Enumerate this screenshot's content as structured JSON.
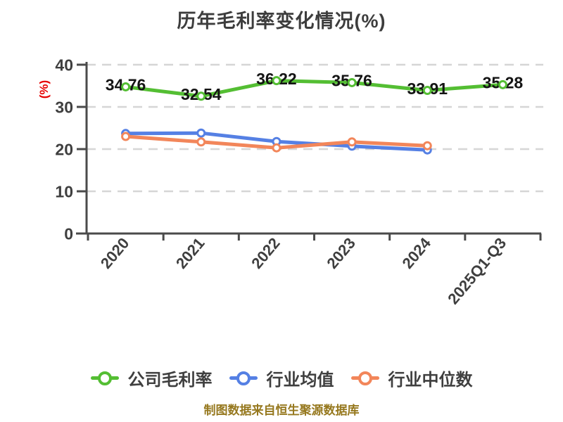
{
  "title": "历年毛利率变化情况(%)",
  "footer": "制图数据来自恒生聚源数据库",
  "legend": {
    "items": [
      {
        "key": "company-gross-margin",
        "label": "公司毛利率",
        "color": "#54BE33"
      },
      {
        "key": "industry-average",
        "label": "行业均值",
        "color": "#5580E4"
      },
      {
        "key": "industry-median",
        "label": "行业中位数",
        "color": "#F2865A"
      }
    ]
  },
  "chart_data": {
    "type": "line",
    "title": "历年毛利率变化情况(%)",
    "xlabel": "",
    "ylabel": "(%)",
    "categories": [
      "2020",
      "2021",
      "2022",
      "2023",
      "2024",
      "2025Q1-Q3"
    ],
    "series": [
      {
        "key": "company-gross-margin",
        "name": "公司毛利率",
        "color": "#54BE33",
        "values": [
          34.76,
          32.54,
          36.22,
          35.76,
          33.91,
          35.28
        ],
        "data_labels": true
      },
      {
        "key": "industry-average",
        "name": "行业均值",
        "color": "#5580E4",
        "values": [
          23.7,
          23.8,
          21.8,
          20.7,
          19.8
        ],
        "data_labels": false
      },
      {
        "key": "industry-median",
        "name": "行业中位数",
        "color": "#F2865A",
        "values": [
          23.0,
          21.7,
          20.3,
          21.7,
          20.8
        ],
        "data_labels": false
      }
    ],
    "ylim": [
      0,
      40
    ],
    "yticks": [
      0,
      10,
      20,
      30,
      40
    ],
    "grid": "horizontal-dashed",
    "legend_position": "bottom",
    "marker": "circle-white-fill"
  },
  "styles": {
    "background": "#FFFFFF",
    "title_color": "#3D3D3D",
    "axis_color": "#4A4A4A",
    "tick_label_color": "#3F3F3F",
    "grid_color": "#D6D6D6",
    "value_label_color": "#141414",
    "ylabel_color": "#E60000",
    "footer_color": "#96781E",
    "legend_label_color": "#3F3F3F"
  }
}
